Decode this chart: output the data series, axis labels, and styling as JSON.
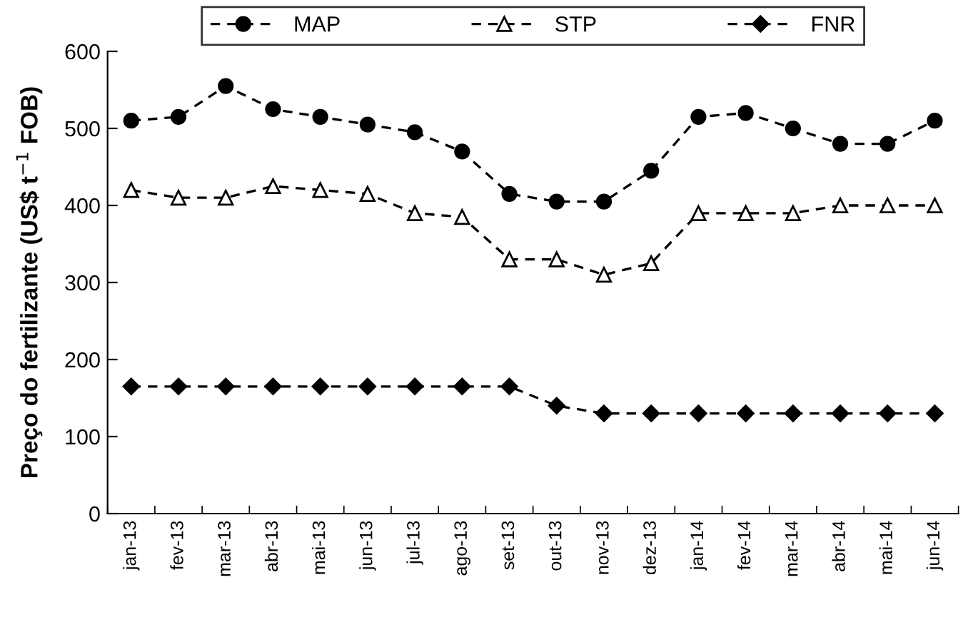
{
  "chart_data": {
    "type": "line",
    "ylabel": "Preço do fertilizante (US$ t$^{−1}$ FOB)",
    "categories": [
      "jan-13",
      "fev-13",
      "mar-13",
      "abr-13",
      "mai-13",
      "jun-13",
      "jul-13",
      "ago-13",
      "set-13",
      "out-13",
      "nov-13",
      "dez-13",
      "jan-14",
      "fev-14",
      "mar-14",
      "abr-14",
      "mai-14",
      "jun-14"
    ],
    "series": [
      {
        "name": "MAP",
        "color": "#000000",
        "marker": "circle",
        "values": [
          510,
          515,
          555,
          525,
          515,
          505,
          495,
          470,
          415,
          405,
          405,
          445,
          515,
          520,
          500,
          480,
          480,
          510
        ]
      },
      {
        "name": "STP",
        "color": "#000000",
        "marker": "triangle",
        "values": [
          420,
          410,
          410,
          425,
          420,
          415,
          390,
          385,
          330,
          330,
          310,
          325,
          390,
          390,
          390,
          400,
          400,
          400
        ]
      },
      {
        "name": "FNR",
        "color": "#000000",
        "marker": "diamond",
        "values": [
          165,
          165,
          165,
          165,
          165,
          165,
          165,
          165,
          165,
          140,
          130,
          130,
          130,
          130,
          130,
          130,
          130,
          130
        ]
      }
    ],
    "ylim": [
      0,
      600
    ],
    "yticks": [
      0,
      100,
      200,
      300,
      400,
      500,
      600
    ],
    "grid": false,
    "legend": "top",
    "line_style": "dashed"
  }
}
